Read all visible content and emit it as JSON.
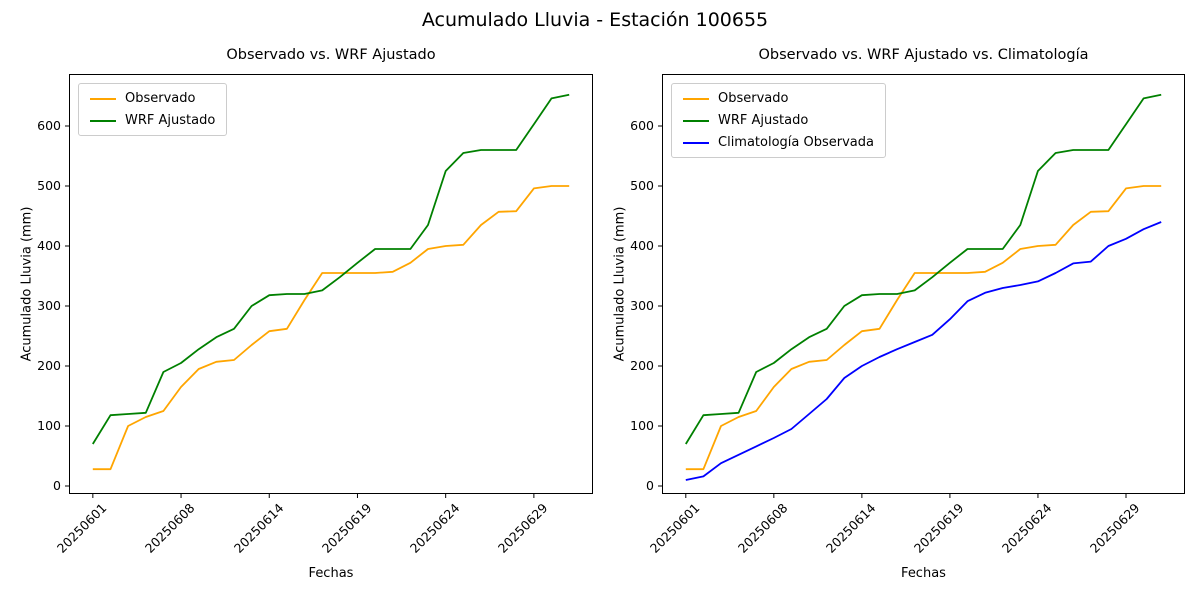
{
  "figure": {
    "suptitle": "Acumulado Lluvia - Estación 100655",
    "background": "#ffffff"
  },
  "chart_data": [
    {
      "type": "line",
      "title": "Observado vs. WRF Ajustado",
      "xlabel": "Fechas",
      "ylabel": "Acumulado Lluvia (mm)",
      "y_ticks": [
        0,
        100,
        200,
        300,
        400,
        500,
        600
      ],
      "x_tick_labels": [
        "20250601",
        "20250608",
        "20250614",
        "20250619",
        "20250624",
        "20250629"
      ],
      "x_tick_positions": [
        0,
        5,
        10,
        15,
        20,
        25
      ],
      "n_points": 28,
      "ylim": [
        -25,
        687
      ],
      "grid": false,
      "legend_position": "upper left",
      "series": [
        {
          "name": "Observado",
          "color": "#FFA500",
          "values": [
            28,
            28,
            100,
            115,
            125,
            165,
            195,
            207,
            210,
            235,
            258,
            262,
            310,
            355,
            355,
            355,
            355,
            357,
            372,
            395,
            400,
            402,
            435,
            457,
            458,
            496,
            500,
            500
          ]
        },
        {
          "name": "WRF Ajustado",
          "color": "#008000",
          "values": [
            70,
            118,
            120,
            122,
            190,
            205,
            228,
            248,
            262,
            300,
            318,
            320,
            320,
            326,
            348,
            372,
            395,
            395,
            395,
            435,
            525,
            555,
            560,
            560,
            560,
            603,
            646,
            652
          ]
        }
      ]
    },
    {
      "type": "line",
      "title": "Observado vs. WRF Ajustado vs. Climatología",
      "xlabel": "Fechas",
      "ylabel": "Acumulado Lluvia (mm)",
      "y_ticks": [
        0,
        100,
        200,
        300,
        400,
        500,
        600
      ],
      "x_tick_labels": [
        "20250601",
        "20250608",
        "20250614",
        "20250619",
        "20250624",
        "20250629"
      ],
      "x_tick_positions": [
        0,
        5,
        10,
        15,
        20,
        25
      ],
      "n_points": 28,
      "ylim": [
        -25,
        687
      ],
      "grid": false,
      "legend_position": "upper left",
      "series": [
        {
          "name": "Observado",
          "color": "#FFA500",
          "values": [
            28,
            28,
            100,
            115,
            125,
            165,
            195,
            207,
            210,
            235,
            258,
            262,
            310,
            355,
            355,
            355,
            355,
            357,
            372,
            395,
            400,
            402,
            435,
            457,
            458,
            496,
            500,
            500
          ]
        },
        {
          "name": "WRF Ajustado",
          "color": "#008000",
          "values": [
            70,
            118,
            120,
            122,
            190,
            205,
            228,
            248,
            262,
            300,
            318,
            320,
            320,
            326,
            348,
            372,
            395,
            395,
            395,
            435,
            525,
            555,
            560,
            560,
            560,
            603,
            646,
            652
          ]
        },
        {
          "name": "Climatología Observada",
          "color": "#0000FF",
          "values": [
            10,
            16,
            38,
            52,
            66,
            80,
            95,
            120,
            145,
            180,
            200,
            215,
            228,
            240,
            252,
            278,
            308,
            322,
            330,
            335,
            341,
            355,
            371,
            374,
            400,
            412,
            428,
            440
          ]
        }
      ]
    }
  ]
}
